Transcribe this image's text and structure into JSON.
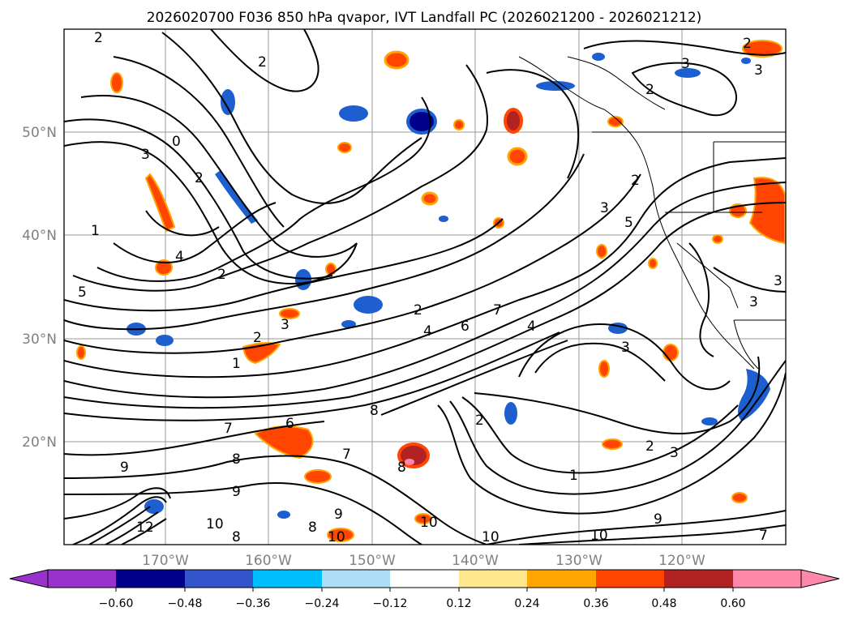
{
  "title": "2026020700 F036 850 hPa qvapor, IVT Landfall PC (2026021200 - 2026021212)",
  "map": {
    "lat_gridlines": [
      "50°N",
      "40°N",
      "30°N",
      "20°N"
    ],
    "lon_gridlines": [
      "170°W",
      "160°W",
      "150°W",
      "140°W",
      "130°W",
      "120°W"
    ],
    "contour_labels": [
      "2",
      "2",
      "3",
      "2",
      "3",
      "0",
      "3",
      "2",
      "1",
      "4",
      "2",
      "2",
      "1",
      "2",
      "3",
      "5",
      "2",
      "3",
      "4",
      "6",
      "7",
      "4",
      "5",
      "7",
      "6",
      "9",
      "8",
      "7",
      "8",
      "9",
      "1",
      "2",
      "2",
      "3",
      "9",
      "10",
      "10",
      "10",
      "8",
      "8",
      "12",
      "9",
      "10",
      "10",
      "8",
      "3",
      "3",
      "3",
      "2",
      "7"
    ]
  },
  "colorbar": {
    "tick_labels": [
      "−0.60",
      "−0.48",
      "−0.36",
      "−0.24",
      "−0.12",
      "0.12",
      "0.24",
      "0.36",
      "0.48",
      "0.60"
    ],
    "colors": {
      "under": "#9932CC",
      "bins": [
        "#00008B",
        "#3355CC",
        "#00BFFF",
        "#ADE0F7",
        "#FFFFFF",
        "#FFE78E",
        "#FFA500",
        "#FF4500",
        "#B22222",
        "#FF88AA"
      ],
      "over": "#FF88AA"
    }
  },
  "anomalies": [
    {
      "name": "blue",
      "color": "#1E5FD0"
    },
    {
      "name": "navy",
      "color": "#00008B"
    },
    {
      "name": "orange",
      "color": "#FF4500"
    },
    {
      "name": "brown",
      "color": "#B22222"
    }
  ]
}
